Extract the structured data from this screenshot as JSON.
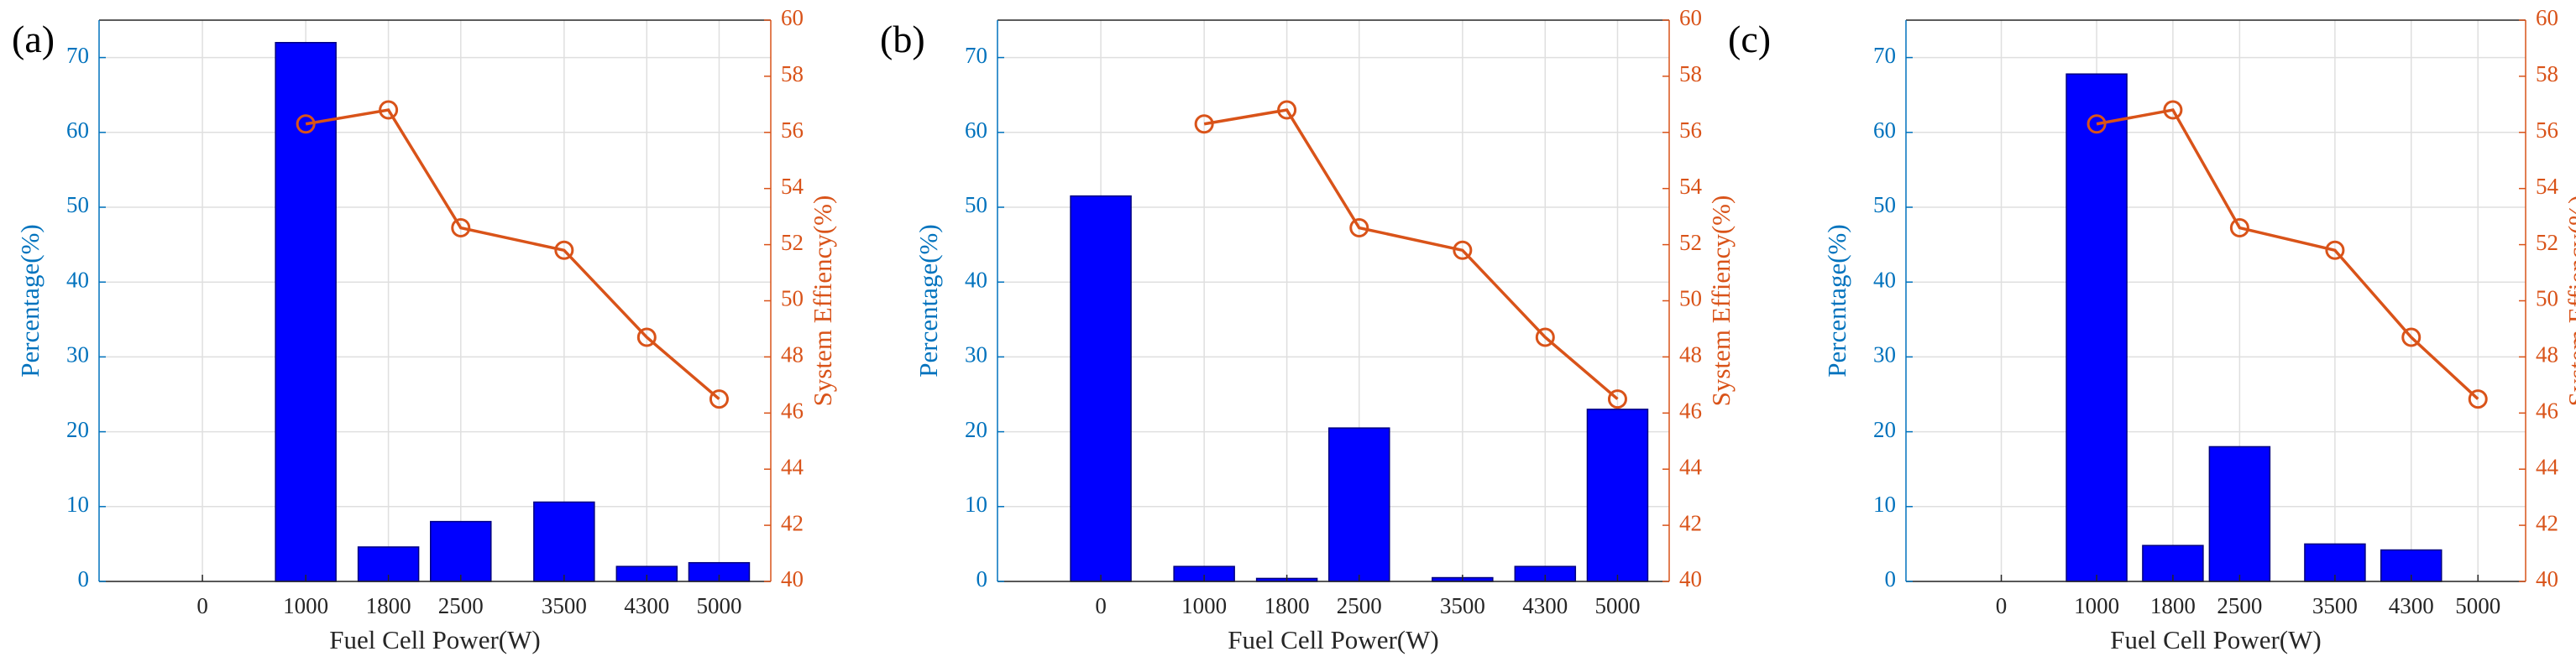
{
  "colors": {
    "bar": "#0000FF",
    "bar_edge": "#000080",
    "left_axis": "#0072BD",
    "right_axis": "#D95319",
    "line": "#D95319",
    "grid": "#DFDFDF",
    "text": "#262626"
  },
  "chart_data": [
    {
      "panel_label": "(a)",
      "type": "bar+line",
      "xlabel": "Fuel Cell Power(W)",
      "ylabel_left": "Percentage(%)",
      "ylabel_right": "System Effiency(%)",
      "xlim": [
        -1000,
        5500
      ],
      "ylim_left": [
        0,
        75
      ],
      "ylim_right": [
        40,
        60
      ],
      "yticks_left": [
        0,
        10,
        20,
        30,
        40,
        50,
        60,
        70
      ],
      "yticks_right": [
        40,
        42,
        44,
        46,
        48,
        50,
        52,
        54,
        56,
        58,
        60
      ],
      "x": [
        0,
        1000,
        1800,
        2500,
        3500,
        4300,
        5000
      ],
      "x_tick_labels": [
        "0",
        "1000",
        "1800",
        "2500",
        "3500",
        "4300",
        "5000"
      ],
      "grid": true,
      "series": [
        {
          "name": "",
          "type": "bar",
          "axis": "left",
          "x": [
            0,
            1000,
            1800,
            2500,
            3500,
            4300,
            5000
          ],
          "values": [
            0,
            72,
            4.6,
            8,
            10.6,
            2,
            2.5
          ]
        },
        {
          "name": "",
          "type": "line",
          "marker": "circle",
          "axis": "right",
          "x": [
            1000,
            1800,
            2500,
            3500,
            4300,
            5000
          ],
          "values": [
            56.3,
            56.8,
            52.6,
            51.8,
            48.7,
            46.5
          ]
        }
      ]
    },
    {
      "panel_label": "(b)",
      "type": "bar+line",
      "xlabel": "Fuel Cell Power(W)",
      "ylabel_left": "Percentage(%)",
      "ylabel_right": "System Effiency(%)",
      "xlim": [
        -1000,
        5500
      ],
      "ylim_left": [
        0,
        75
      ],
      "ylim_right": [
        40,
        60
      ],
      "yticks_left": [
        0,
        10,
        20,
        30,
        40,
        50,
        60,
        70
      ],
      "yticks_right": [
        40,
        42,
        44,
        46,
        48,
        50,
        52,
        54,
        56,
        58,
        60
      ],
      "x": [
        0,
        1000,
        1800,
        2500,
        3500,
        4300,
        5000
      ],
      "x_tick_labels": [
        "0",
        "1000",
        "1800",
        "2500",
        "3500",
        "4300",
        "5000"
      ],
      "grid": true,
      "series": [
        {
          "name": "",
          "type": "bar",
          "axis": "left",
          "x": [
            0,
            1000,
            1800,
            2500,
            3500,
            4300,
            5000
          ],
          "values": [
            51.5,
            2,
            0.4,
            20.5,
            0.5,
            2,
            23
          ]
        },
        {
          "name": "",
          "type": "line",
          "marker": "circle",
          "axis": "right",
          "x": [
            1000,
            1800,
            2500,
            3500,
            4300,
            5000
          ],
          "values": [
            56.3,
            56.8,
            52.6,
            51.8,
            48.7,
            46.5
          ]
        }
      ]
    },
    {
      "panel_label": "(c)",
      "type": "bar+line",
      "xlabel": "Fuel Cell Power(W)",
      "ylabel_left": "Percentage(%)",
      "ylabel_right": "System Effiency(%)",
      "xlim": [
        -1000,
        5500
      ],
      "ylim_left": [
        0,
        75
      ],
      "ylim_right": [
        40,
        60
      ],
      "yticks_left": [
        0,
        10,
        20,
        30,
        40,
        50,
        60,
        70
      ],
      "yticks_right": [
        40,
        42,
        44,
        46,
        48,
        50,
        52,
        54,
        56,
        58,
        60
      ],
      "x": [
        0,
        1000,
        1800,
        2500,
        3500,
        4300,
        5000
      ],
      "x_tick_labels": [
        "0",
        "1000",
        "1800",
        "2500",
        "3500",
        "4300",
        "5000"
      ],
      "grid": true,
      "series": [
        {
          "name": "",
          "type": "bar",
          "axis": "left",
          "x": [
            0,
            1000,
            1800,
            2500,
            3500,
            4300,
            5000
          ],
          "values": [
            0,
            67.8,
            4.8,
            18,
            5,
            4.2,
            0
          ]
        },
        {
          "name": "",
          "type": "line",
          "marker": "circle",
          "axis": "right",
          "x": [
            1000,
            1800,
            2500,
            3500,
            4300,
            5000
          ],
          "values": [
            56.3,
            56.8,
            52.6,
            51.8,
            48.7,
            46.5
          ]
        }
      ]
    }
  ]
}
